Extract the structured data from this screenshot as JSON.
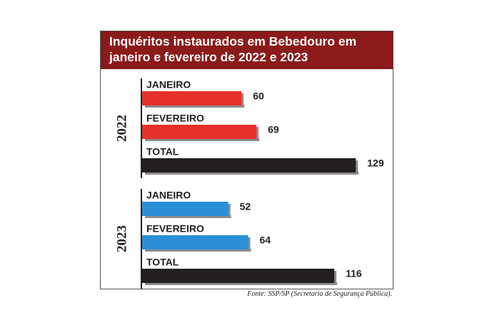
{
  "title_line1": "Inquéritos instaurados em Bebedouro em",
  "title_line2": "janeiro e fevereiro de 2022 e 2023",
  "source": "Fonte: SSP/SP (Secretaria de Segurança Pública).",
  "colors": {
    "title_bg": "#8b1a1a",
    "red": "#e8302a",
    "blue": "#2a8fd6",
    "black": "#231f20"
  },
  "chart_data": {
    "type": "bar",
    "orientation": "horizontal",
    "groups": [
      {
        "label": "2022",
        "bars": [
          {
            "category": "JANEIRO",
            "value": 60,
            "color": "#e8302a"
          },
          {
            "category": "FEVEREIRO",
            "value": 69,
            "color": "#e8302a"
          },
          {
            "category": "TOTAL",
            "value": 129,
            "color": "#231f20"
          }
        ]
      },
      {
        "label": "2023",
        "bars": [
          {
            "category": "JANEIRO",
            "value": 52,
            "color": "#2a8fd6"
          },
          {
            "category": "FEVEREIRO",
            "value": 64,
            "color": "#2a8fd6"
          },
          {
            "category": "TOTAL",
            "value": 116,
            "color": "#231f20"
          }
        ]
      }
    ],
    "grid": false,
    "legend": "none"
  }
}
